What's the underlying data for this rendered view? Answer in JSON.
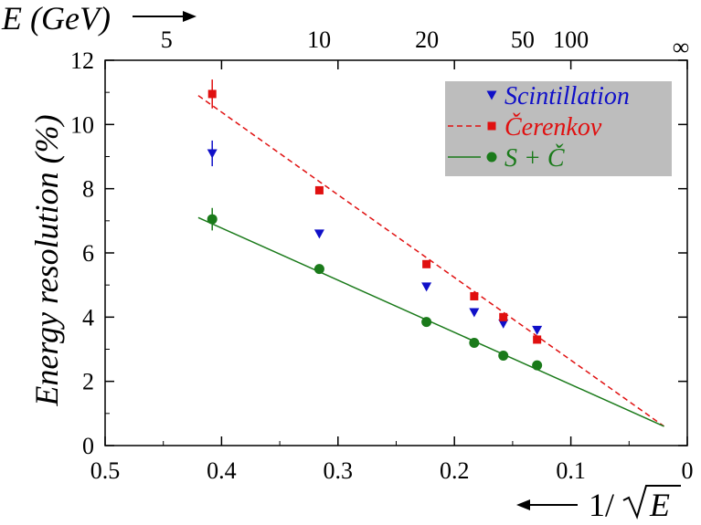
{
  "chart_data": {
    "type": "scatter",
    "ylabel": "Energy resolution (%)",
    "xlabel_bottom": "1/√E",
    "xlabel_top": "E (GeV)",
    "xlim": [
      0.5,
      0
    ],
    "ylim": [
      0,
      12
    ],
    "x_ticks": [
      "0.5",
      "0.4",
      "0.3",
      "0.2",
      "0.1",
      "0"
    ],
    "x_tick_values": [
      0.5,
      0.4,
      0.3,
      0.2,
      0.1,
      0
    ],
    "y_ticks": [
      "0",
      "2",
      "4",
      "6",
      "8",
      "10",
      "12"
    ],
    "y_tick_values": [
      0,
      2,
      4,
      6,
      8,
      10,
      12
    ],
    "top_ticks": [
      "5",
      "10",
      "20",
      "50",
      "100",
      "∞"
    ],
    "top_tick_energies": [
      5,
      10,
      20,
      50,
      100,
      null
    ],
    "legend_position": "top-right",
    "series": [
      {
        "name": "Scintillation",
        "color": "#1010c8",
        "marker": "triangle-down",
        "x": [
          0.408,
          0.316,
          0.224,
          0.183,
          0.158,
          0.129
        ],
        "y": [
          9.1,
          6.6,
          4.95,
          4.15,
          3.8,
          3.6
        ],
        "yerr": [
          0.4,
          0.1,
          0.1,
          0.1,
          0.1,
          0.1
        ]
      },
      {
        "name": "Čerenkov",
        "color": "#e01010",
        "marker": "square",
        "x": [
          0.408,
          0.316,
          0.224,
          0.183,
          0.158,
          0.129
        ],
        "y": [
          10.95,
          7.95,
          5.65,
          4.65,
          4.0,
          3.3
        ],
        "yerr": [
          0.45,
          0.1,
          0.1,
          0.1,
          0.1,
          0.1
        ],
        "fit": {
          "style": "dashed",
          "x": [
            0.42,
            0.02
          ],
          "y": [
            10.9,
            0.6
          ]
        }
      },
      {
        "name": "S + Č",
        "color": "#1a7a1a",
        "marker": "circle",
        "x": [
          0.408,
          0.316,
          0.224,
          0.183,
          0.158,
          0.129
        ],
        "y": [
          7.05,
          5.5,
          3.85,
          3.2,
          2.8,
          2.5
        ],
        "yerr": [
          0.35,
          0.1,
          0.1,
          0.1,
          0.1,
          0.1
        ],
        "fit": {
          "style": "solid",
          "x": [
            0.42,
            0.02
          ],
          "y": [
            7.1,
            0.6
          ]
        }
      }
    ]
  }
}
